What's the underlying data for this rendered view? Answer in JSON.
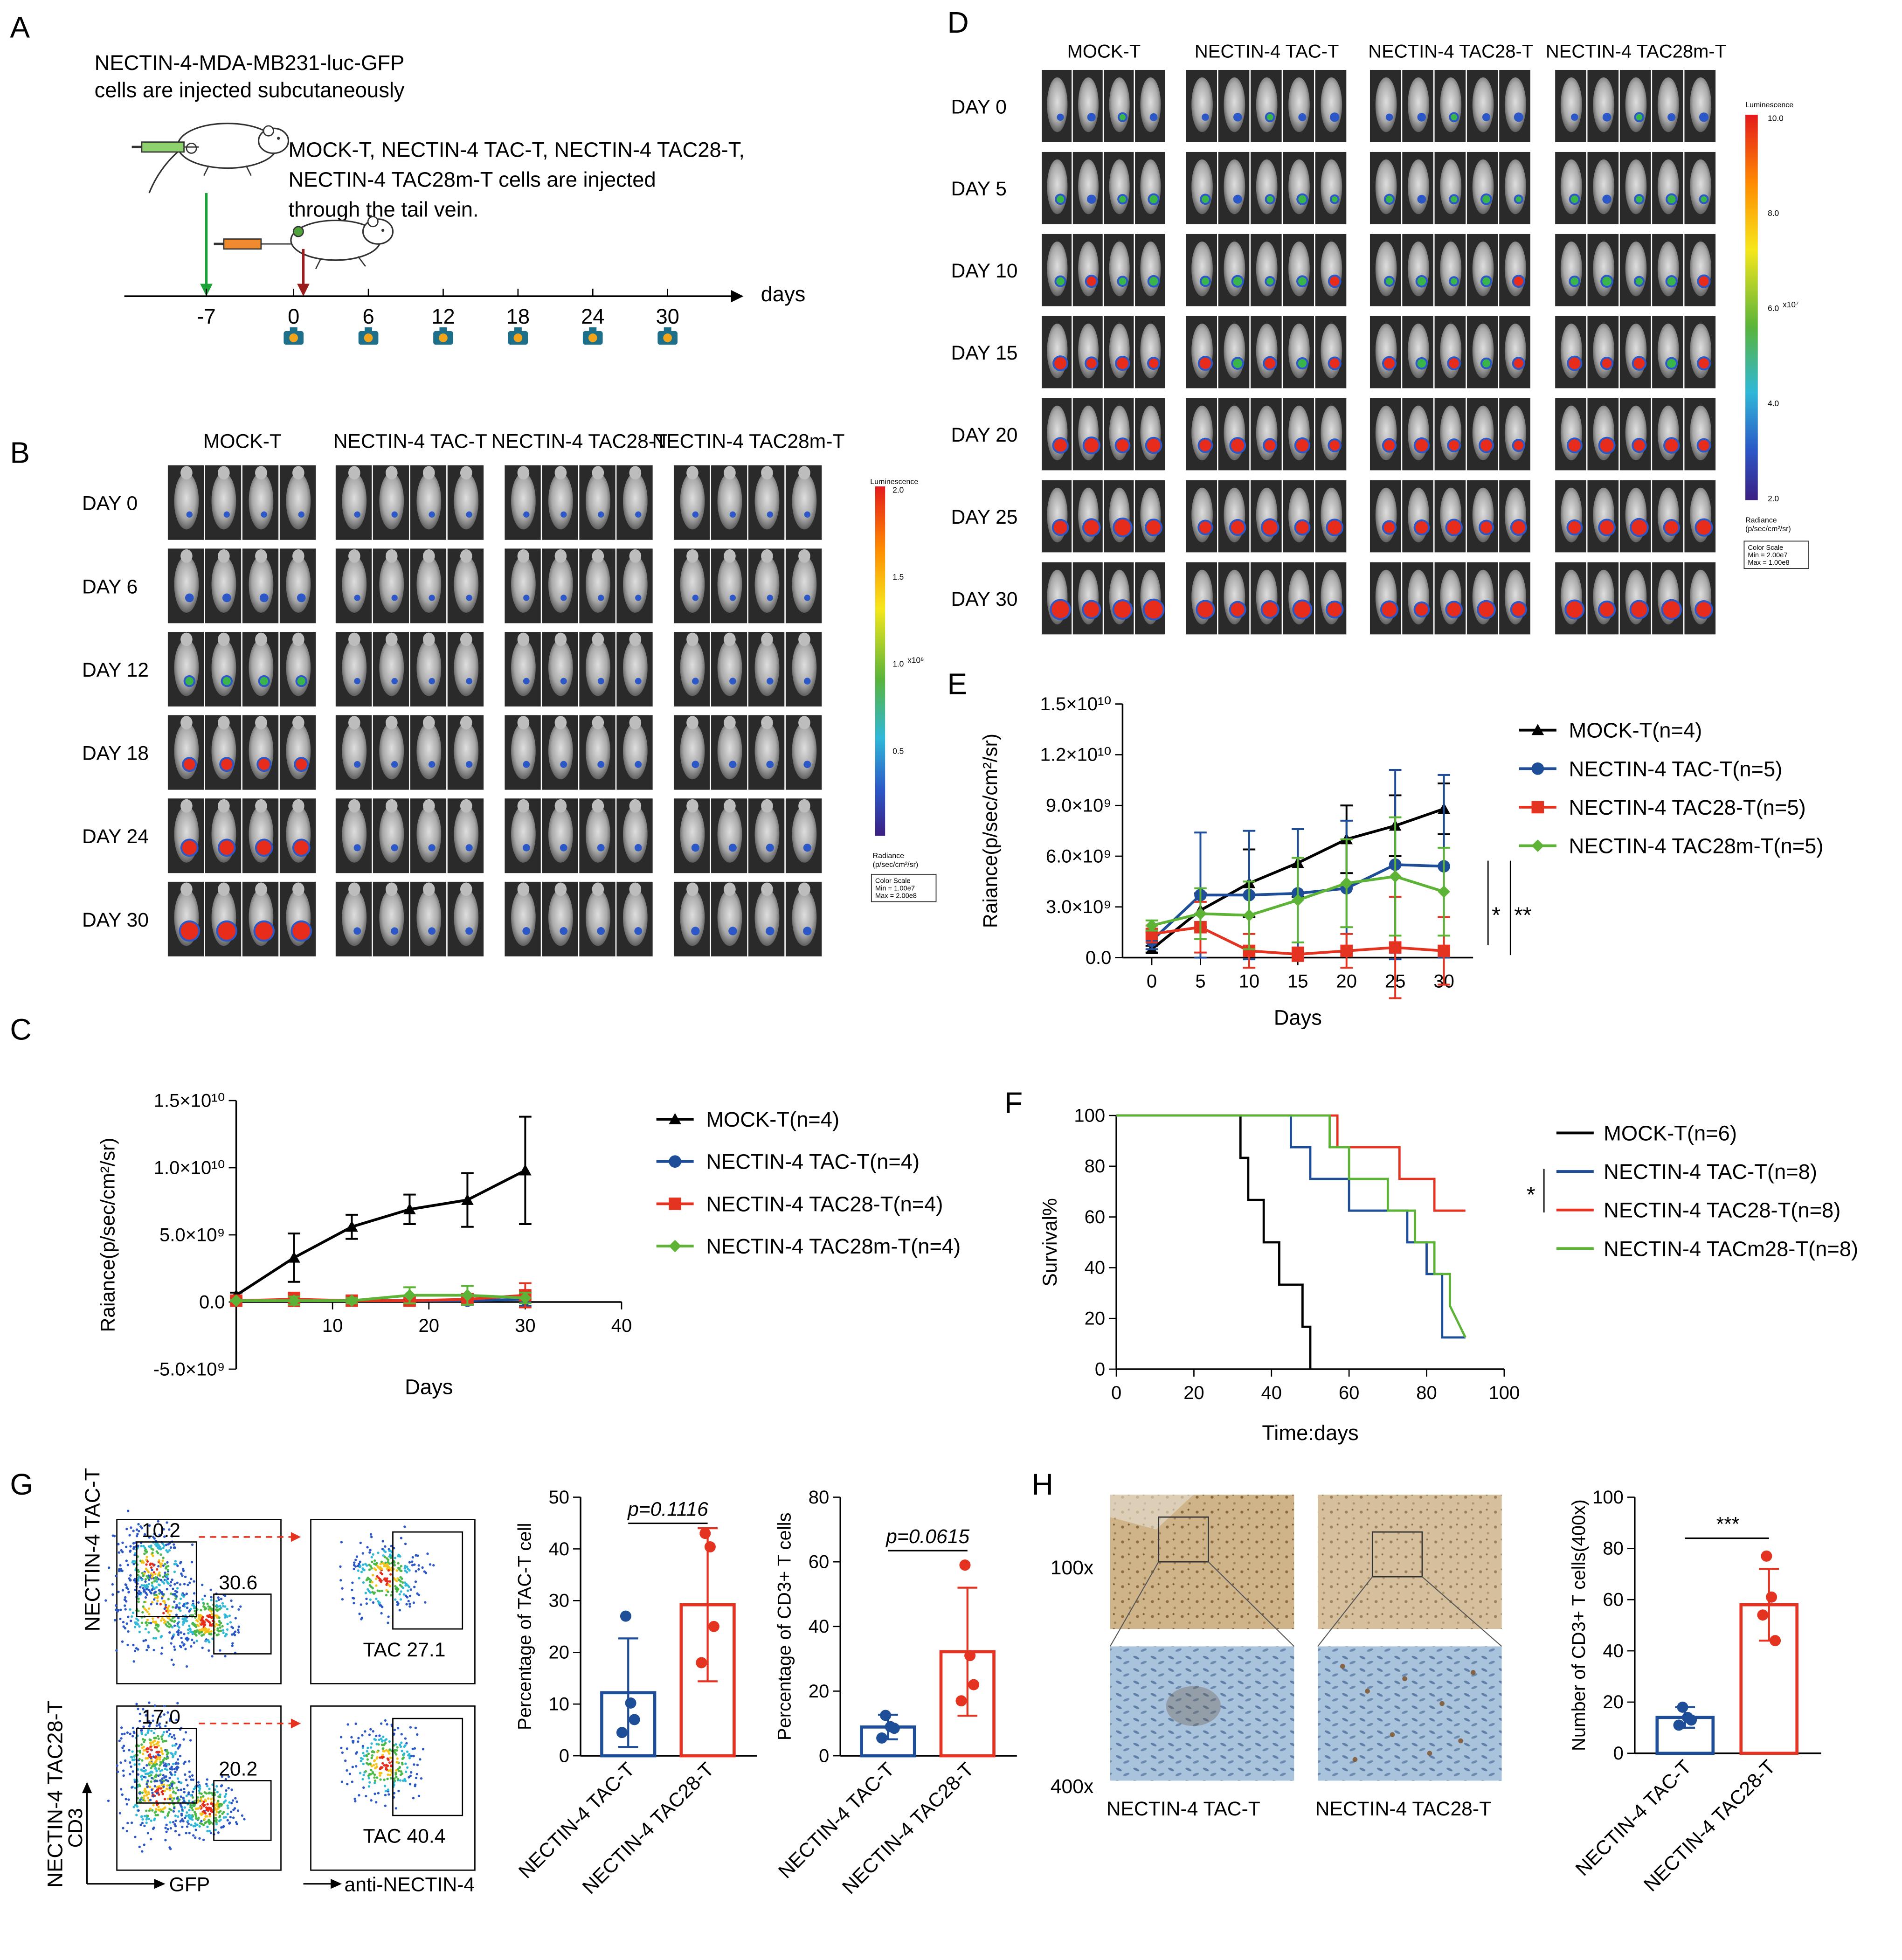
{
  "colors": {
    "mock": "#000000",
    "tac": "#1f4e99",
    "tac28": "#e53322",
    "tac28m": "#5cb335",
    "arrow_green": "#1aa336",
    "arrow_red": "#9b1c1c",
    "dash_red": "#e53322",
    "ihc_brown": "#b89668",
    "ihc_blue": "#93b3cf"
  },
  "panels": {
    "A": {
      "letter": "A",
      "line1": "NECTIN-4-MDA-MB231-luc-GFP",
      "line2": "cells are injected subcutaneously",
      "line3": "MOCK-T, NECTIN-4 TAC-T, NECTIN-4 TAC28-T,",
      "line4": "NECTIN-4 TAC28m-T cells are injected",
      "line5": "through the tail vein.",
      "days_label": "days",
      "ticks": [
        "-7",
        "0",
        "6",
        "12",
        "18",
        "24",
        "30"
      ],
      "tick_values": [
        -7,
        0,
        6,
        12,
        18,
        24,
        30
      ],
      "imaging_days": [
        0,
        6,
        12,
        18,
        24,
        30
      ]
    },
    "B": {
      "letter": "B",
      "groups": [
        "MOCK-T",
        "NECTIN-4 TAC-T",
        "NECTIN-4 TAC28-T",
        "NECTIN-4 TAC28m-T"
      ],
      "rows": [
        "DAY 0",
        "DAY 6",
        "DAY 12",
        "DAY 18",
        "DAY 24",
        "DAY 30"
      ],
      "scale_title": "Luminescence",
      "scale_ticks": [
        "2.0",
        "1.5",
        "1.0",
        "0.5"
      ],
      "scale_exponent": "x10⁸",
      "radiance_label_1": "Radiance",
      "radiance_label_2": "(p/sec/cm²/sr)",
      "box_line1": "Color Scale",
      "box_line2": "Min = 1.00e7",
      "box_line3": "Max = 2.00e8"
    },
    "C": {
      "letter": "C",
      "chart_data": {
        "type": "line",
        "title": "",
        "xlabel": "Days",
        "ylabel": "Raiance(p/sec/cm²/sr)",
        "xlim": [
          0,
          40
        ],
        "ylim": [
          -5000000000,
          15000000000
        ],
        "x_ticks": [
          10,
          20,
          30,
          40
        ],
        "y_ticks": [
          -5000000000,
          0,
          5000000000,
          10000000000,
          15000000000
        ],
        "y_tick_labels": [
          "-5.0×10⁹",
          "0.0",
          "5.0×10⁹",
          "1.0×10¹⁰",
          "1.5×10¹⁰"
        ],
        "x_tick_labels": [
          "10",
          "20",
          "30",
          "40"
        ],
        "legend": [
          "MOCK-T(n=4)",
          "NECTIN-4 TAC-T(n=4)",
          "NECTIN-4 TAC28-T(n=4)",
          "NECTIN-4 TAC28m-T(n=4)"
        ],
        "series": [
          {
            "name": "MOCK-T(n=4)",
            "marker": "triangle",
            "x": [
              0,
              6,
              12,
              18,
              24,
              30
            ],
            "values": [
              500000000,
              3300000000,
              5600000000,
              6900000000,
              7600000000,
              9800000000
            ],
            "err": [
              200000000,
              1800000000,
              900000000,
              1100000000,
              2000000000,
              4000000000
            ]
          },
          {
            "name": "NECTIN-4 TAC-T(n=4)",
            "marker": "circle",
            "x": [
              0,
              6,
              12,
              18,
              24,
              30
            ],
            "values": [
              100000000,
              100000000,
              100000000,
              100000000,
              100000000,
              200000000
            ],
            "err": [
              50000000,
              300000000,
              200000000,
              300000000,
              300000000,
              500000000
            ]
          },
          {
            "name": "NECTIN-4 TAC28-T(n=4)",
            "marker": "square",
            "x": [
              0,
              6,
              12,
              18,
              24,
              30
            ],
            "values": [
              100000000,
              200000000,
              100000000,
              100000000,
              200000000,
              500000000
            ],
            "err": [
              50000000,
              500000000,
              200000000,
              300000000,
              400000000,
              900000000
            ]
          },
          {
            "name": "NECTIN-4 TAC28m-T(n=4)",
            "marker": "diamond",
            "x": [
              0,
              6,
              12,
              18,
              24,
              30
            ],
            "values": [
              100000000,
              100000000,
              100000000,
              500000000,
              500000000,
              300000000
            ],
            "err": [
              50000000,
              300000000,
              200000000,
              600000000,
              700000000,
              400000000
            ]
          }
        ]
      }
    },
    "D": {
      "letter": "D",
      "groups": [
        "MOCK-T",
        "NECTIN-4 TAC-T",
        "NECTIN-4 TAC28-T",
        "NECTIN-4 TAC28m-T"
      ],
      "rows": [
        "DAY 0",
        "DAY 5",
        "DAY 10",
        "DAY 15",
        "DAY 20",
        "DAY 25",
        "DAY 30"
      ],
      "scale_title": "Luminescence",
      "scale_ticks": [
        "10.0",
        "8.0",
        "6.0",
        "4.0",
        "2.0"
      ],
      "scale_exponent": "x10⁷",
      "radiance_label_1": "Radiance",
      "radiance_label_2": "(p/sec/cm²/sr)",
      "box_line1": "Color Scale",
      "box_line2": "Min = 2.00e7",
      "box_line3": "Max = 1.00e8"
    },
    "E": {
      "letter": "E",
      "sig1": "*",
      "sig2": "**",
      "chart_data": {
        "type": "line",
        "title": "",
        "xlabel": "Days",
        "ylabel": "Raiance(p/sec/cm²/sr)",
        "xlim": [
          -3,
          33
        ],
        "ylim": [
          0,
          15000000000
        ],
        "x_ticks": [
          0,
          5,
          10,
          15,
          20,
          25,
          30
        ],
        "x_tick_labels": [
          "0",
          "5",
          "10",
          "15",
          "20",
          "25",
          "30"
        ],
        "y_ticks": [
          0,
          3000000000,
          6000000000,
          9000000000,
          12000000000,
          15000000000
        ],
        "y_tick_labels": [
          "0.0",
          "3.0×10⁹",
          "6.0×10⁹",
          "9.0×10⁹",
          "1.2×10¹⁰",
          "1.5×10¹⁰"
        ],
        "legend": [
          "MOCK-T(n=4)",
          "NECTIN-4 TAC-T(n=5)",
          "NECTIN-4 TAC28-T(n=5)",
          "NECTIN-4 TAC28m-T(n=5)"
        ],
        "series": [
          {
            "name": "MOCK-T(n=4)",
            "marker": "triangle",
            "x": [
              0,
              5,
              10,
              15,
              20,
              25,
              30
            ],
            "values": [
              500000000,
              2800000000,
              4400000000,
              5600000000,
              7000000000,
              7800000000,
              8800000000
            ],
            "err": [
              200000000,
              1000000000,
              2000000000,
              2000000000,
              2000000000,
              1800000000,
              1500000000
            ]
          },
          {
            "name": "NECTIN-4 TAC-T(n=5)",
            "marker": "circle",
            "x": [
              0,
              5,
              10,
              15,
              20,
              25,
              30
            ],
            "values": [
              1000000000,
              3700000000,
              3700000000,
              3800000000,
              4100000000,
              5500000000,
              5400000000
            ],
            "err": [
              500000000,
              3700000000,
              3800000000,
              3800000000,
              4000000000,
              5600000000,
              5400000000
            ]
          },
          {
            "name": "NECTIN-4 TAC28-T(n=5)",
            "marker": "square",
            "x": [
              0,
              5,
              10,
              15,
              20,
              25,
              30
            ],
            "values": [
              1400000000,
              1800000000,
              400000000,
              200000000,
              400000000,
              600000000,
              400000000
            ],
            "err": [
              500000000,
              1500000000,
              1000000000,
              400000000,
              1000000000,
              3000000000,
              2000000000
            ]
          },
          {
            "name": "NECTIN-4 TAC28m-T(n=5)",
            "marker": "diamond",
            "x": [
              0,
              5,
              10,
              15,
              20,
              25,
              30
            ],
            "values": [
              1900000000,
              2600000000,
              2500000000,
              3400000000,
              4400000000,
              4800000000,
              3900000000
            ],
            "err": [
              300000000,
              1500000000,
              2000000000,
              2500000000,
              2600000000,
              3500000000,
              2600000000
            ]
          }
        ]
      }
    },
    "F": {
      "letter": "F",
      "sig": "*",
      "chart_data": {
        "type": "line",
        "title": "",
        "xlabel": "Time:days",
        "ylabel": "Survival%",
        "xlim": [
          0,
          100
        ],
        "ylim": [
          0,
          100
        ],
        "x_ticks": [
          0,
          20,
          40,
          60,
          80,
          100
        ],
        "x_tick_labels": [
          "0",
          "20",
          "40",
          "60",
          "80",
          "100"
        ],
        "y_ticks": [
          0,
          20,
          40,
          60,
          80,
          100
        ],
        "y_tick_labels": [
          "0",
          "20",
          "40",
          "60",
          "80",
          "100"
        ],
        "legend": [
          "MOCK-T(n=6)",
          "NECTIN-4 TAC-T(n=8)",
          "NECTIN-4 TAC28-T(n=8)",
          "NECTIN-4 TACm28-T(n=8)"
        ],
        "series": [
          {
            "name": "MOCK-T(n=6)",
            "x": [
              0,
              32,
              32,
              34,
              34,
              38,
              38,
              42,
              42,
              48,
              48,
              50,
              50
            ],
            "values": [
              100,
              100,
              83.3,
              83.3,
              66.7,
              66.7,
              50,
              50,
              33.3,
              33.3,
              16.7,
              16.7,
              0
            ]
          },
          {
            "name": "NECTIN-4 TAC-T(n=8)",
            "x": [
              0,
              45,
              45,
              50,
              50,
              60,
              60,
              75,
              75,
              80,
              80,
              84,
              84,
              90
            ],
            "values": [
              100,
              100,
              87.5,
              87.5,
              75,
              75,
              62.5,
              62.5,
              50,
              50,
              37.5,
              37.5,
              12.5,
              12.5
            ]
          },
          {
            "name": "NECTIN-4 TAC28-T(n=8)",
            "x": [
              0,
              57,
              57,
              73,
              73,
              82,
              82,
              90
            ],
            "values": [
              100,
              100,
              87.5,
              87.5,
              75,
              75,
              62.5,
              62.5
            ]
          },
          {
            "name": "NECTIN-4 TACm28-T(n=8)",
            "x": [
              0,
              55,
              55,
              60,
              60,
              70,
              70,
              77,
              77,
              82,
              82,
              86,
              86,
              90
            ],
            "values": [
              100,
              100,
              87.5,
              87.5,
              75,
              75,
              62.5,
              62.5,
              50,
              50,
              37.5,
              37.5,
              25,
              12.5
            ]
          }
        ]
      }
    },
    "G": {
      "letter": "G",
      "row_labels": [
        "NECTIN-4 TAC-T",
        "NECTIN-4 TAC28-T"
      ],
      "gate_values": [
        "10.2",
        "30.6",
        "17.0",
        "20.2"
      ],
      "tac_values": [
        "TAC 27.1",
        "TAC 40.4"
      ],
      "axis_y": "CD3",
      "axis_x": "GFP",
      "axis_x2": "anti-NECTIN-4",
      "bar1": {
        "chart_data": {
          "type": "bar",
          "categories": [
            "NECTIN-4 TAC-T",
            "NECTIN-4 TAC28-T"
          ],
          "values": [
            12.2,
            29.2
          ],
          "err": [
            10.5,
            14.8
          ],
          "points": [
            [
              27.0,
              10.2,
              4.5,
              7.0
            ],
            [
              43.0,
              40.4,
              18.0,
              25.0
            ]
          ],
          "ylabel": "Percentage of TAC-T cell",
          "ylim": [
            0,
            50
          ],
          "y_ticks": [
            0,
            10,
            20,
            30,
            40,
            50
          ],
          "p_text": "p=0.1116"
        }
      },
      "bar2": {
        "chart_data": {
          "type": "bar",
          "categories": [
            "NECTIN-4 TAC-T",
            "NECTIN-4 TAC28-T"
          ],
          "values": [
            8.9,
            32.2
          ],
          "err": [
            3.8,
            19.8
          ],
          "points": [
            [
              12.5,
              9.0,
              5.5,
              8.5
            ],
            [
              59.0,
              31.0,
              17.0,
              22.0
            ]
          ],
          "ylabel": "Percentage of CD3+ T cells",
          "ylim": [
            0,
            80
          ],
          "y_ticks": [
            0,
            20,
            40,
            60,
            80
          ],
          "p_text": "p=0.0615"
        }
      }
    },
    "H": {
      "letter": "H",
      "mag1": "100x",
      "mag2": "400x",
      "col_labels": [
        "NECTIN-4 TAC-T",
        "NECTIN-4 TAC28-T"
      ],
      "bar": {
        "chart_data": {
          "type": "bar",
          "categories": [
            "NECTIN-4 TAC-T",
            "NECTIN-4 TAC28-T"
          ],
          "values": [
            14.0,
            58.0
          ],
          "err": [
            4.0,
            14.0
          ],
          "points": [
            [
              18.0,
              14.0,
              11.0,
              13.0
            ],
            [
              77.0,
              61.0,
              54.0,
              44.0
            ]
          ],
          "ylabel": "Number of CD3+ T cells(400x)",
          "ylim": [
            0,
            100
          ],
          "y_ticks": [
            0,
            20,
            40,
            60,
            80,
            100
          ],
          "sig": "***"
        }
      }
    }
  }
}
